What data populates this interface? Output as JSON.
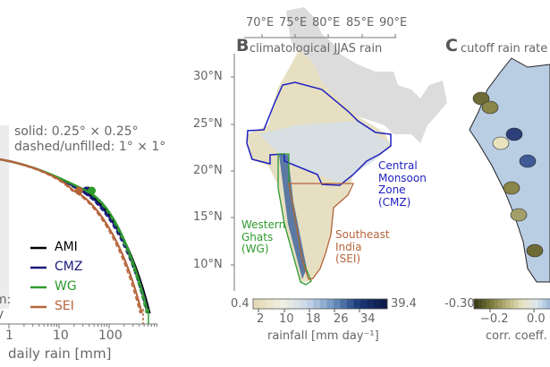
{
  "chart_data": [
    {
      "panel": "A",
      "type": "line",
      "annotation_lines": [
        "solid: 0.25° × 0.25°",
        "dashed/unfilled: 1° × 1°"
      ],
      "xlabel": "daily rain [mm]",
      "x_scale": "log",
      "x_ticks": [
        "1",
        "10",
        "100"
      ],
      "cut_ylabel_fragments": [
        "m:",
        "y"
      ],
      "legend": "lower-left",
      "series": [
        {
          "name": "AMI",
          "color": "#000000",
          "marker_x": 38,
          "max_x": 650
        },
        {
          "name": "CMZ",
          "color": "#1a1a7a",
          "marker_x": 35,
          "max_x": 620
        },
        {
          "name": "WG",
          "color": "#2e9a2e",
          "marker_x": 45,
          "max_x": 600
        },
        {
          "name": "SEI",
          "color": "#b5643a",
          "marker_x": 25,
          "max_x": 450
        }
      ]
    },
    {
      "panel": "B",
      "type": "heatmap",
      "panel_letter": "B",
      "title": "climatological JJAS rain",
      "lon_ticks": [
        "70°E",
        "75°E",
        "80°E",
        "85°E",
        "90°E"
      ],
      "lat_ticks": [
        "30°N",
        "25°N",
        "20°N",
        "15°N",
        "10°N"
      ],
      "regions": [
        {
          "label": [
            "Central",
            "Monsoon",
            "Zone",
            "(CMZ)"
          ],
          "color": "#1f1fbf"
        },
        {
          "label": [
            "Western",
            "Ghats",
            "(WG)"
          ],
          "color": "#2e9a2e"
        },
        {
          "label": [
            "Southeast",
            "India",
            "(SEI)"
          ],
          "color": "#b5643a"
        }
      ],
      "colorbar": {
        "min": "0.4",
        "max": "39.4",
        "ticks": [
          "2",
          "10",
          "18",
          "26",
          "34"
        ],
        "label": "rainfall [mm day⁻¹]",
        "colors": [
          "#e4dcb8",
          "#f2efe0",
          "#c9d8e8",
          "#6d95c2",
          "#1b3a78",
          "#0d1b4a"
        ]
      }
    },
    {
      "panel": "C",
      "type": "heatmap",
      "panel_letter": "C",
      "title": "cutoff rain rate v",
      "colorbar": {
        "min": "-0.30",
        "ticks": [
          "−0.2",
          "0.0"
        ],
        "label": "corr. coeff. [",
        "colors": [
          "#3d3d1a",
          "#7a7a3c",
          "#b8b27a",
          "#e8e2bf",
          "#dce6f0",
          "#8fb0d6"
        ]
      }
    }
  ]
}
